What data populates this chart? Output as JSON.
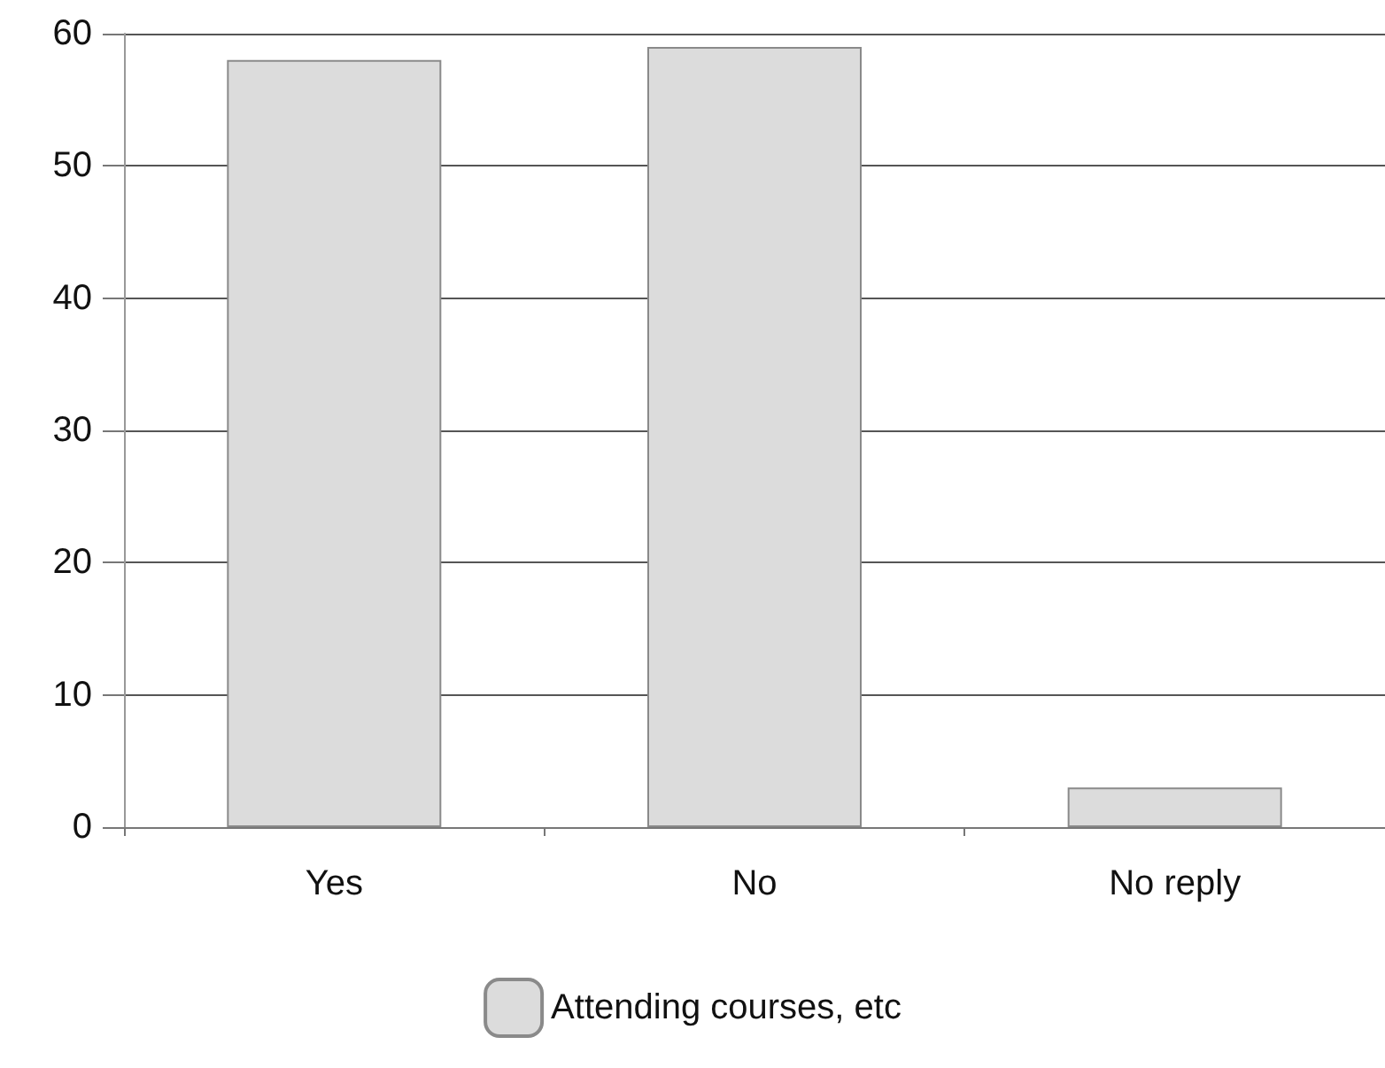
{
  "chart_data": {
    "type": "bar",
    "categories": [
      "Yes",
      "No",
      "No reply"
    ],
    "series": [
      {
        "name": "Attending courses, etc",
        "color": "#dcdcdc",
        "values": [
          58,
          59,
          3
        ]
      }
    ],
    "ylim": [
      0,
      60
    ],
    "yticks": [
      0,
      10,
      20,
      30,
      40,
      50,
      60
    ],
    "grid": "y",
    "legend": "bottom"
  }
}
